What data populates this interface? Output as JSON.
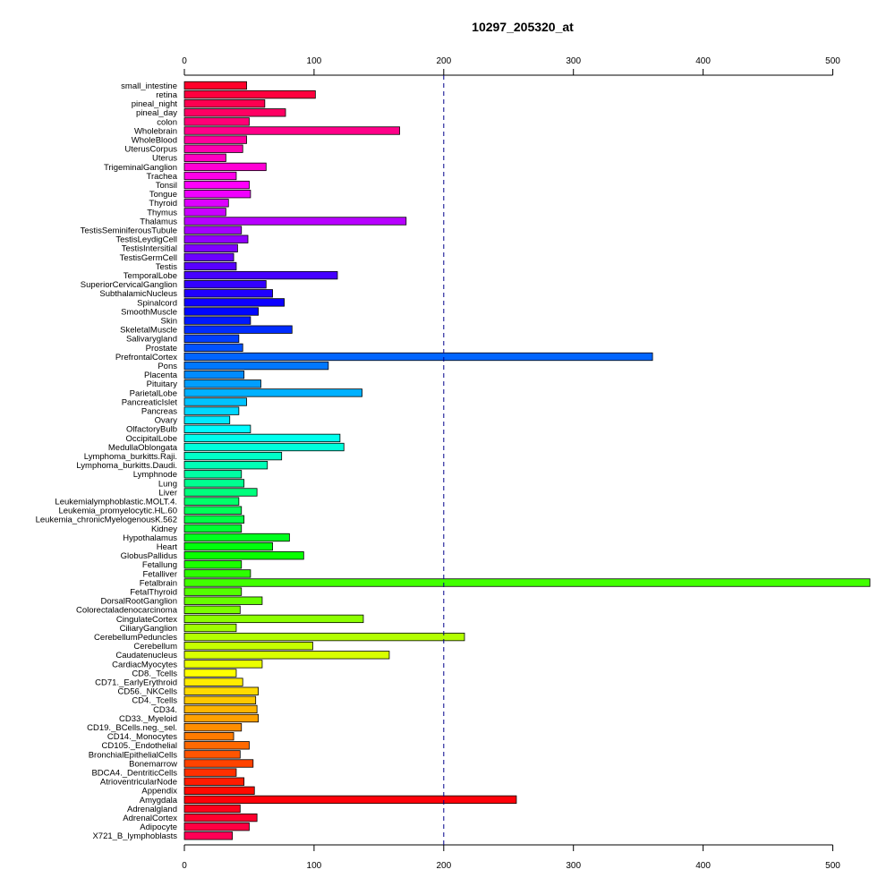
{
  "chart_data": {
    "type": "bar",
    "orientation": "horizontal",
    "title": "10297_205320_at",
    "xlabel": "",
    "ylabel": "",
    "xlim": [
      0,
      500
    ],
    "xticks": [
      0,
      100,
      200,
      300,
      400,
      500
    ],
    "reference_line": 200,
    "grid": false,
    "legend": "none",
    "categories": [
      "small_intestine",
      "retina",
      "pineal_night",
      "pineal_day",
      "colon",
      "Wholebrain",
      "WholeBlood",
      "UterusCorpus",
      "Uterus",
      "TrigeminalGanglion",
      "Trachea",
      "Tonsil",
      "Tongue",
      "Thyroid",
      "Thymus",
      "Thalamus",
      "TestisSeminiferousTubule",
      "TestisLeydigCell",
      "TestisIntersitial",
      "TestisGermCell",
      "Testis",
      "TemporalLobe",
      "SuperiorCervicalGanglion",
      "SubthalamicNucleus",
      "Spinalcord",
      "SmoothMuscle",
      "Skin",
      "SkeletalMuscle",
      "Salivarygland",
      "Prostate",
      "PrefrontalCortex",
      "Pons",
      "Placenta",
      "Pituitary",
      "ParietalLobe",
      "PancreaticIslet",
      "Pancreas",
      "Ovary",
      "OlfactoryBulb",
      "OccipitalLobe",
      "MedullaOblongata",
      "Lymphoma_burkitts.Raji.",
      "Lymphoma_burkitts.Daudi.",
      "Lymphnode",
      "Lung",
      "Liver",
      "Leukemialymphoblastic.MOLT.4.",
      "Leukemia_promyelocytic.HL.60",
      "Leukemia_chronicMyelogenousK.562",
      "Kidney",
      "Hypothalamus",
      "Heart",
      "GlobusPallidus",
      "Fetallung",
      "Fetalliver",
      "Fetalbrain",
      "FetalThyroid",
      "DorsalRootGanglion",
      "Colorectaladenocarcinoma",
      "CingulateCortex",
      "CiliaryGanglion",
      "CerebellumPeduncles",
      "Cerebellum",
      "Caudatenucleus",
      "CardiacMyocytes",
      "CD8._Tcells",
      "CD71._EarlyErythroid",
      "CD56._NKCells",
      "CD4._Tcells",
      "CD34.",
      "CD33._Myeloid",
      "CD19._BCells.neg._sel.",
      "CD14._Monocytes",
      "CD105._Endothelial",
      "BronchialEpithelialCells",
      "Bonemarrow",
      "BDCA4._DentriticCells",
      "AtrioventricularNode",
      "Appendix",
      "Amygdala",
      "Adrenalgland",
      "AdrenalCortex",
      "Adipocyte",
      "X721_B_lymphoblasts"
    ],
    "values": [
      48,
      101,
      62,
      78,
      50,
      166,
      48,
      45,
      32,
      63,
      40,
      50,
      51,
      34,
      32,
      171,
      44,
      49,
      41,
      38,
      40,
      118,
      63,
      68,
      77,
      57,
      51,
      83,
      42,
      45,
      361,
      111,
      46,
      59,
      137,
      48,
      42,
      35,
      51,
      120,
      123,
      75,
      64,
      44,
      46,
      56,
      42,
      44,
      46,
      44,
      81,
      68,
      92,
      44,
      51,
      530,
      44,
      60,
      43,
      138,
      40,
      216,
      99,
      158,
      60,
      40,
      45,
      57,
      55,
      56,
      57,
      44,
      38,
      50,
      43,
      53,
      40,
      46,
      54,
      256,
      43,
      56,
      50,
      37
    ]
  }
}
